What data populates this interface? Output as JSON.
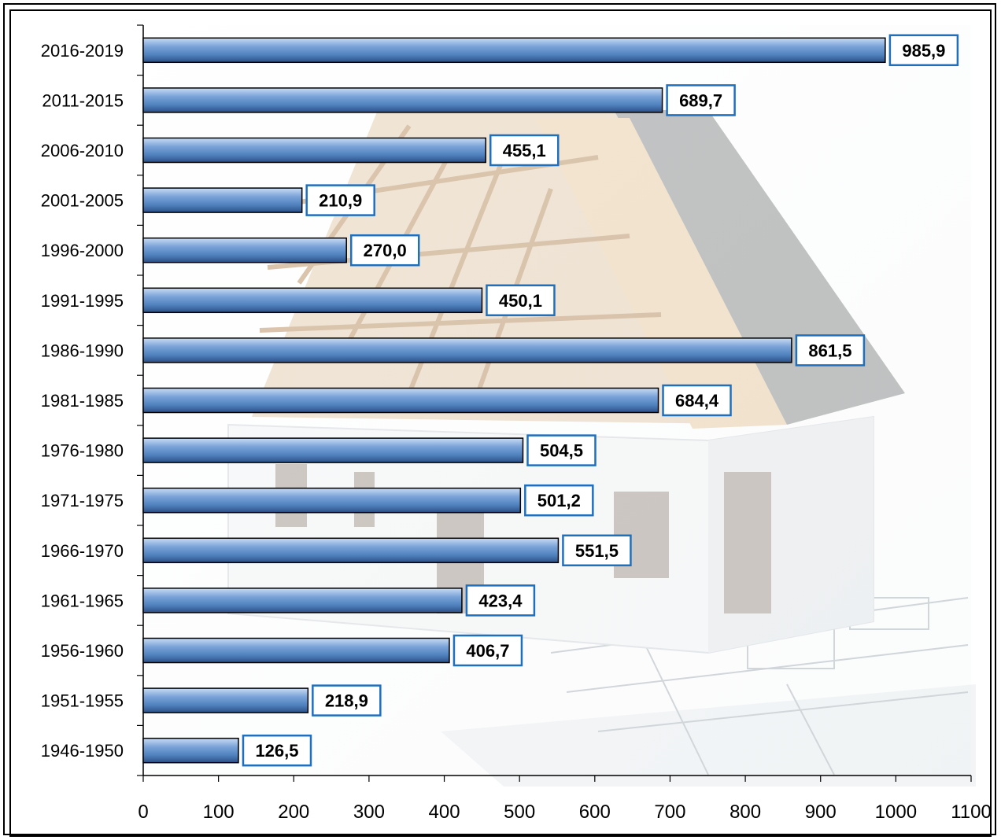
{
  "chart_data": {
    "type": "bar",
    "orientation": "horizontal",
    "title": "",
    "xlabel": "",
    "ylabel": "",
    "xlim": [
      0,
      1100
    ],
    "xticks": [
      0,
      100,
      200,
      300,
      400,
      500,
      600,
      700,
      800,
      900,
      1000,
      1100
    ],
    "grid": false,
    "legend": "none",
    "colors": {
      "bar": "#4f81bd",
      "bar_light": "#9bbbe6",
      "bar_dark": "#2c4f86",
      "label_border": "#1f6fbf"
    },
    "categories": [
      "2016-2019",
      "2011-2015",
      "2006-2010",
      "2001-2005",
      "1996-2000",
      "1991-1995",
      "1986-1990",
      "1981-1985",
      "1976-1980",
      "1971-1975",
      "1966-1970",
      "1961-1965",
      "1956-1960",
      "1951-1955",
      "1946-1950"
    ],
    "values": [
      985.9,
      689.7,
      455.1,
      210.9,
      270.0,
      450.1,
      861.5,
      684.4,
      504.5,
      501.2,
      551.5,
      423.4,
      406.7,
      218.9,
      126.5
    ],
    "value_labels": [
      "985,9",
      "689,7",
      "455,1",
      "210,9",
      "270,0",
      "450,1",
      "861,5",
      "684,4",
      "504,5",
      "501,2",
      "551,5",
      "423,4",
      "406,7",
      "218,9",
      "126,5"
    ]
  }
}
